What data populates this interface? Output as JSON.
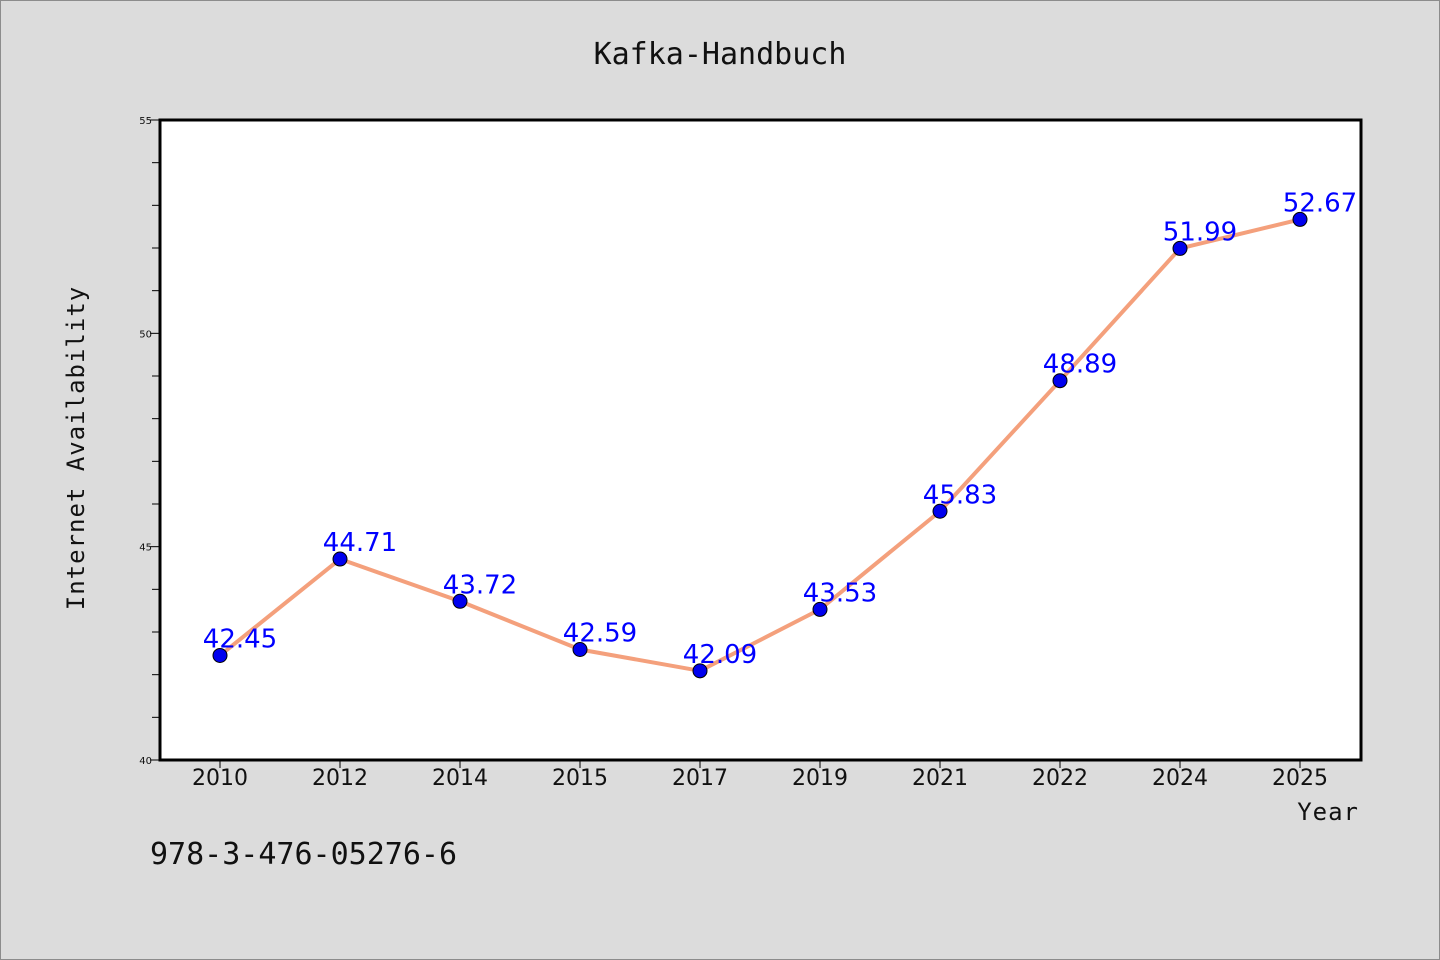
{
  "chart_data": {
    "type": "line",
    "title": "Kafka-Handbuch",
    "xlabel": "Year",
    "ylabel": "Internet Availability",
    "categories": [
      "2010",
      "2012",
      "2014",
      "2015",
      "2017",
      "2019",
      "2021",
      "2022",
      "2024",
      "2025"
    ],
    "series": [
      {
        "values": [
          42.45,
          44.71,
          43.72,
          42.59,
          42.09,
          43.53,
          45.83,
          48.89,
          51.99,
          52.67
        ],
        "labels": [
          "42.45",
          "44.71",
          "43.72",
          "42.59",
          "42.09",
          "43.53",
          "45.83",
          "48.89",
          "51.99",
          "52.67"
        ]
      }
    ],
    "ylim": [
      40,
      55
    ],
    "yticks": [
      "40",
      "45",
      "50",
      "55"
    ],
    "grid": false,
    "colors": {
      "line": "#f4a07c",
      "marker": "#0000ee",
      "label": "#0000ff"
    }
  },
  "footer": {
    "isbn": "978-3-476-05276-6"
  }
}
